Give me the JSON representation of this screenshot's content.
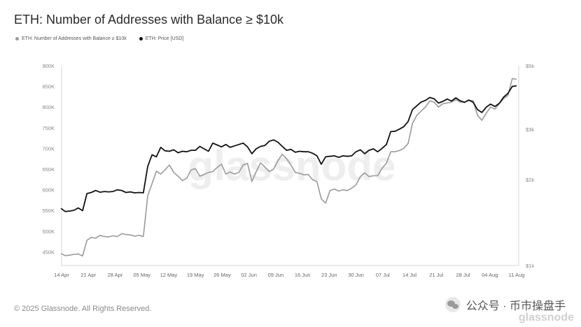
{
  "title": "ETH: Number of Addresses with Balance ≥ $10k",
  "legend": [
    {
      "label": "ETH: Number of Addresses with Balance ≥ $10k",
      "color": "#9a9a9a"
    },
    {
      "label": "ETH: Price [USD]",
      "color": "#111111"
    }
  ],
  "footer": "© 2025 Glassnode. All Rights Reserved.",
  "watermark": "glassnode",
  "wechat_label": "公众号 · 币市操盘手",
  "corner_watermark": "glassnode",
  "chart_data": {
    "type": "line",
    "x_ticks": [
      "14 Apr",
      "21 Apr",
      "28 Apr",
      "05 May",
      "12 May",
      "19 May",
      "26 May",
      "02 Jun",
      "09 Jun",
      "16 Jun",
      "23 Jun",
      "30 Jun",
      "07 Jul",
      "14 Jul",
      "21 Jul",
      "28 Jul",
      "04 Aug",
      "11 Aug"
    ],
    "y_left_ticks": [
      "450K",
      "500K",
      "550K",
      "600K",
      "650K",
      "700K",
      "750K",
      "800K",
      "850K",
      "900K"
    ],
    "y_left_range": [
      417000,
      900000
    ],
    "y_right_ticks": [
      "$1k",
      "$2k",
      "$3k",
      "$5k"
    ],
    "y_right_scale": "log",
    "y_right_range": [
      1000,
      5000
    ],
    "grid": false,
    "legend_position": "top-left",
    "series": [
      {
        "name": "ETH: Number of Addresses with Balance ≥ $10k",
        "axis": "left",
        "color": "#9a9a9a",
        "values": [
          446000,
          441000,
          442000,
          444000,
          445000,
          440000,
          478000,
          485000,
          483000,
          490000,
          487000,
          486000,
          489000,
          487000,
          494000,
          492000,
          491000,
          488000,
          490000,
          487000,
          585000,
          615000,
          645000,
          638000,
          648000,
          660000,
          642000,
          633000,
          622000,
          628000,
          648000,
          651000,
          633000,
          637000,
          642000,
          644000,
          654000,
          662000,
          638000,
          643000,
          638000,
          642000,
          660000,
          664000,
          620000,
          644000,
          665000,
          655000,
          644000,
          650000,
          670000,
          686000,
          675000,
          660000,
          642000,
          640000,
          636000,
          637000,
          624000,
          620000,
          578000,
          568000,
          598000,
          602000,
          597000,
          600000,
          598000,
          604000,
          612000,
          632000,
          641000,
          632000,
          634000,
          634000,
          652000,
          664000,
          692000,
          692000,
          695000,
          700000,
          712000,
          760000,
          780000,
          790000,
          800000,
          815000,
          812000,
          800000,
          808000,
          810000,
          812000,
          818000,
          812000,
          812000,
          816000,
          815000,
          780000,
          768000,
          785000,
          800000,
          795000,
          808000,
          820000,
          828000,
          869000,
          867000
        ]
      },
      {
        "name": "ETH: Price [USD]",
        "axis": "right",
        "color": "#111111",
        "values": [
          1585,
          1545,
          1550,
          1560,
          1590,
          1555,
          1785,
          1800,
          1830,
          1805,
          1815,
          1810,
          1815,
          1840,
          1830,
          1800,
          1810,
          1795,
          1800,
          1795,
          2220,
          2440,
          2400,
          2590,
          2520,
          2510,
          2540,
          2480,
          2510,
          2500,
          2530,
          2530,
          2610,
          2560,
          2510,
          2680,
          2640,
          2600,
          2650,
          2590,
          2620,
          2650,
          2680,
          2600,
          2460,
          2560,
          2610,
          2630,
          2720,
          2750,
          2700,
          2610,
          2530,
          2550,
          2490,
          2510,
          2500,
          2500,
          2470,
          2420,
          2260,
          2400,
          2410,
          2420,
          2390,
          2420,
          2410,
          2420,
          2500,
          2540,
          2460,
          2530,
          2560,
          2500,
          2570,
          2650,
          2940,
          2950,
          3000,
          3060,
          3190,
          3510,
          3620,
          3730,
          3780,
          3870,
          3830,
          3700,
          3750,
          3820,
          3760,
          3860,
          3770,
          3720,
          3790,
          3720,
          3510,
          3430,
          3580,
          3670,
          3600,
          3690,
          3880,
          4000,
          4230,
          4250
        ]
      }
    ]
  }
}
